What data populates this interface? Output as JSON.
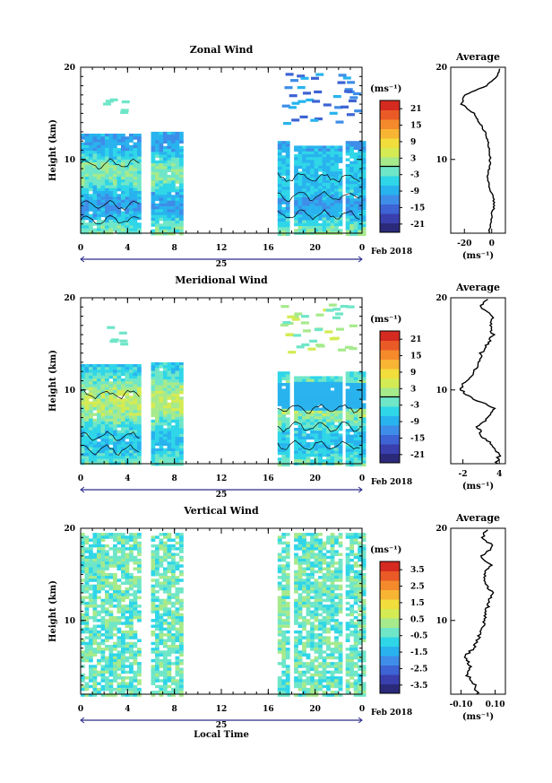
{
  "date_label": "Feb 2018",
  "day_label": "25",
  "unit_label": "(ms⁻¹)",
  "average_title": "Average",
  "xlabel_bottom": "Local Time",
  "colors": {
    "scale": [
      "#2b2a7a",
      "#3a3fae",
      "#3d63d4",
      "#3e8de8",
      "#28b3ee",
      "#2fd6e8",
      "#6fe6c8",
      "#a6ea8c",
      "#d4eb54",
      "#f1dd3c",
      "#f8b534",
      "#f58a2c",
      "#ea5a26",
      "#d42a20"
    ]
  },
  "panels": [
    {
      "title": "Zonal Wind",
      "ylabel": "Height (km)",
      "colorbar_ticks": [
        "21",
        "15",
        "9",
        "3",
        "-3",
        "-9",
        "-15",
        "-21"
      ],
      "colorbar_zero_frac": 0.5,
      "avg_ticks": [
        "-20",
        "0"
      ]
    },
    {
      "title": "Meridional Wind",
      "ylabel": "Height (km)",
      "colorbar_ticks": [
        "21",
        "15",
        "9",
        "3",
        "-3",
        "-9",
        "-15",
        "-21"
      ],
      "colorbar_zero_frac": 0.5,
      "avg_ticks": [
        "-2",
        "4"
      ]
    },
    {
      "title": "Vertical Wind",
      "ylabel": "Height (km)",
      "colorbar_ticks": [
        "3.5",
        "2.5",
        "1.5",
        "0.5",
        "-0.5",
        "-1.5",
        "-2.5",
        "-3.5"
      ],
      "colorbar_zero_frac": null,
      "avg_ticks": [
        "-0.10",
        "0.10"
      ]
    }
  ],
  "chart_data": [
    {
      "type": "heatmap",
      "title": "Zonal Wind",
      "ylabel": "Height (km)",
      "x_ticks": [
        "0",
        "4",
        "8",
        "12",
        "16",
        "20",
        "0"
      ],
      "x_range": [
        0,
        24
      ],
      "y_ticks": [
        "10",
        "20"
      ],
      "y_range": [
        2,
        20
      ],
      "data_intervals_hours": [
        [
          0,
          5
        ],
        [
          6,
          8.5
        ],
        [
          16.8,
          17.7
        ],
        [
          18.2,
          22
        ],
        [
          22.6,
          24
        ]
      ],
      "colorbar": {
        "unit": "ms-1",
        "min": -24,
        "max": 24
      },
      "average_profile": {
        "xlim": [
          -30,
          10
        ],
        "x_ticks": [
          -20,
          0
        ],
        "height_km": [
          2,
          3,
          4,
          5,
          6,
          7,
          8,
          9,
          10,
          11,
          12,
          13,
          14,
          15,
          16,
          17,
          18,
          19,
          20
        ],
        "value": [
          -2,
          -1,
          0,
          2,
          1,
          -2,
          -3,
          -2,
          -1,
          -2,
          -3,
          -5,
          -9,
          -13,
          -22,
          -20,
          -4,
          4,
          6
        ]
      }
    },
    {
      "type": "heatmap",
      "title": "Meridional Wind",
      "ylabel": "Height (km)",
      "x_ticks": [
        "0",
        "4",
        "8",
        "12",
        "16",
        "20",
        "0"
      ],
      "x_range": [
        0,
        24
      ],
      "y_ticks": [
        "10",
        "20"
      ],
      "y_range": [
        2,
        20
      ],
      "data_intervals_hours": [
        [
          0,
          5
        ],
        [
          6,
          8.5
        ],
        [
          16.8,
          17.7
        ],
        [
          18.2,
          22
        ],
        [
          22.6,
          24
        ]
      ],
      "colorbar": {
        "unit": "ms-1",
        "min": -24,
        "max": 24
      },
      "average_profile": {
        "xlim": [
          -4,
          5
        ],
        "x_ticks": [
          -2,
          4
        ],
        "height_km": [
          2,
          3,
          4,
          5,
          6,
          7,
          8,
          9,
          10,
          11,
          12,
          13,
          14,
          15,
          16,
          17,
          18,
          19,
          20
        ],
        "value": [
          3.5,
          4,
          3,
          1,
          0.5,
          2,
          3,
          0,
          -2.5,
          -1.5,
          0,
          0.5,
          1,
          2,
          3,
          2.5,
          3,
          1,
          2
        ]
      }
    },
    {
      "type": "heatmap",
      "title": "Vertical Wind",
      "ylabel": "Height (km)",
      "x_ticks": [
        "0",
        "4",
        "8",
        "12",
        "16",
        "20",
        "0"
      ],
      "x_range": [
        0,
        24
      ],
      "y_ticks": [
        "10",
        "20"
      ],
      "y_range": [
        2,
        20
      ],
      "xlabel": "Local Time",
      "data_intervals_hours": [
        [
          0,
          5
        ],
        [
          6,
          8.5
        ],
        [
          16.8,
          17.7
        ],
        [
          18.2,
          22
        ],
        [
          22.6,
          24
        ]
      ],
      "colorbar": {
        "unit": "ms-1",
        "min": -4,
        "max": 4
      },
      "average_profile": {
        "xlim": [
          -0.16,
          0.16
        ],
        "x_ticks": [
          -0.1,
          0.1
        ],
        "height_km": [
          2,
          3,
          4,
          5,
          6,
          7,
          8,
          9,
          10,
          11,
          12,
          13,
          14,
          15,
          16,
          17,
          18,
          19,
          20
        ],
        "value": [
          0.0,
          -0.02,
          -0.06,
          -0.04,
          -0.08,
          -0.03,
          0.0,
          0.02,
          0.04,
          0.05,
          0.06,
          0.08,
          0.05,
          0.03,
          0.07,
          0.02,
          0.09,
          0.03,
          0.05
        ]
      }
    }
  ]
}
